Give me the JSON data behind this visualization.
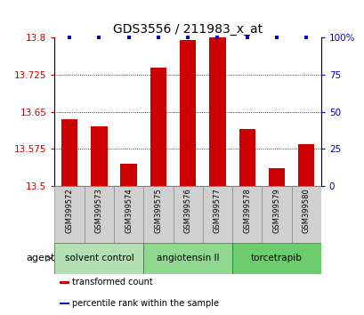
{
  "title": "GDS3556 / 211983_x_at",
  "samples": [
    "GSM399572",
    "GSM399573",
    "GSM399574",
    "GSM399575",
    "GSM399576",
    "GSM399577",
    "GSM399578",
    "GSM399579",
    "GSM399580"
  ],
  "bar_values": [
    13.635,
    13.62,
    13.545,
    13.74,
    13.795,
    13.8,
    13.615,
    13.535,
    13.585
  ],
  "percentile_values": [
    100,
    100,
    100,
    100,
    100,
    100,
    100,
    100,
    100
  ],
  "ylim_left": [
    13.5,
    13.8
  ],
  "ylim_right": [
    0,
    100
  ],
  "yticks_left": [
    13.5,
    13.575,
    13.65,
    13.725,
    13.8
  ],
  "yticks_right": [
    0,
    25,
    50,
    75,
    100
  ],
  "bar_color": "#CC0000",
  "percentile_color": "#0000CC",
  "groups": [
    {
      "label": "solvent control",
      "start": 0,
      "end": 3,
      "color": "#b2e0b2"
    },
    {
      "label": "angiotensin II",
      "start": 3,
      "end": 6,
      "color": "#90d890"
    },
    {
      "label": "torcetrapib",
      "start": 6,
      "end": 9,
      "color": "#6dcc6d"
    }
  ],
  "agent_label": "agent",
  "legend_items": [
    {
      "label": "transformed count",
      "color": "#CC0000"
    },
    {
      "label": "percentile rank within the sample",
      "color": "#0000CC"
    }
  ],
  "bar_width": 0.55,
  "tick_fontsize": 7.5,
  "title_fontsize": 10,
  "sample_fontsize": 6,
  "group_fontsize": 7.5,
  "legend_fontsize": 7
}
